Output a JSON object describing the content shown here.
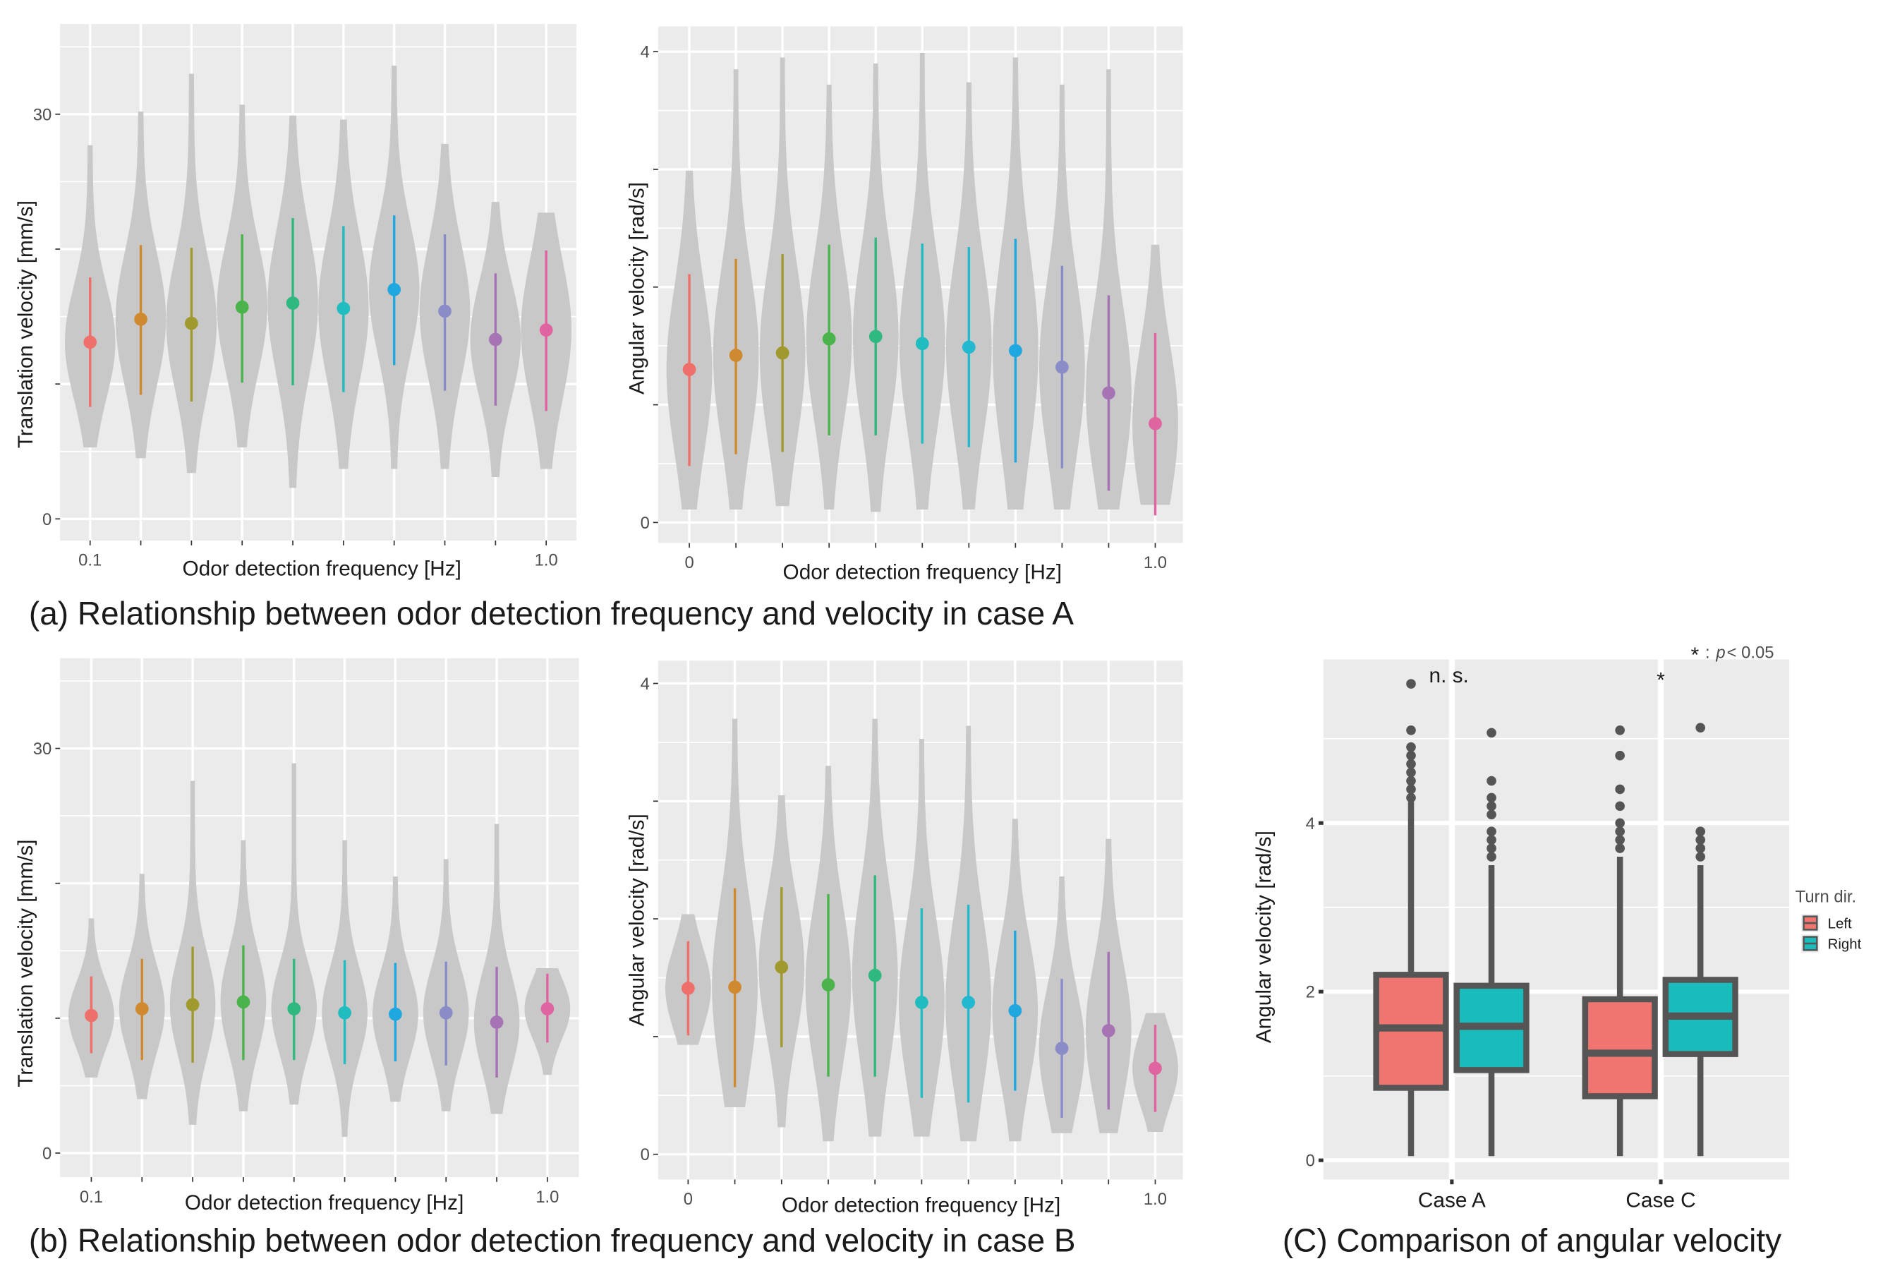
{
  "captions": {
    "a": "(a) Relationship between odor detection frequency and velocity in case A",
    "b": "(b) Relationship between odor detection frequency and velocity in case B",
    "c": "(C) Comparison of angular velocity"
  },
  "colors": {
    "panel": "#ebebeb",
    "grid": "#ffffff",
    "violin": "#c8c8c8",
    "box_line": "#555555",
    "left": "#f07470",
    "right": "#1abbbb",
    "series10": [
      "#ef6f6a",
      "#cf8a30",
      "#a09a2e",
      "#4bb34b",
      "#2fb97f",
      "#1fbcc0",
      "#1fa8e0",
      "#8a8cc8",
      "#a673b5",
      "#e0649f"
    ],
    "series11": [
      "#ef6f6a",
      "#cf8a30",
      "#a09a2e",
      "#4bb34b",
      "#2fb97f",
      "#1fbcc0",
      "#22b8d0",
      "#1fa8e0",
      "#8a8cc8",
      "#a673b5",
      "#e0649f"
    ]
  },
  "chart_data": [
    {
      "id": "a_translation",
      "type": "violin",
      "panel": "a",
      "xlabel": "Odor detection frequency [Hz]",
      "ylabel": "Translation velocity [mm/s]",
      "x_tick_labels": [
        "0.1",
        "",
        "",
        "",
        "",
        "",
        "",
        "",
        "",
        "1.0"
      ],
      "y_ticks": [
        0,
        10,
        20,
        30
      ],
      "y_tick_labels": [
        "0",
        "",
        "",
        "30"
      ],
      "ylim": [
        -1.5,
        36.5
      ],
      "mean": [
        13.1,
        14.8,
        14.5,
        15.7,
        16.0,
        15.6,
        17.0,
        15.4,
        13.3,
        14.0
      ],
      "sd_low": [
        8.3,
        9.2,
        8.7,
        10.1,
        9.9,
        9.4,
        11.4,
        9.5,
        8.4,
        8.0
      ],
      "sd_high": [
        17.9,
        20.3,
        20.1,
        21.1,
        22.3,
        21.7,
        22.5,
        21.1,
        18.2,
        19.9
      ],
      "min": [
        5.3,
        4.5,
        3.4,
        5.3,
        2.3,
        3.7,
        3.7,
        3.7,
        3.1,
        3.7
      ],
      "max": [
        27.7,
        30.2,
        33.0,
        30.7,
        29.9,
        29.6,
        33.6,
        27.8,
        23.5,
        22.7
      ]
    },
    {
      "id": "a_angular",
      "type": "violin",
      "panel": "a",
      "xlabel": "Odor detection frequency [Hz]",
      "ylabel": "Angular velocity [rad/s]",
      "x_tick_labels": [
        "0",
        "",
        "",
        "",
        "",
        "",
        "",
        "",
        "",
        "",
        "1.0"
      ],
      "y_ticks": [
        0,
        1,
        2,
        3,
        4
      ],
      "y_tick_labels": [
        "0",
        "",
        "",
        "",
        "4"
      ],
      "ylim": [
        -0.17,
        4.2
      ],
      "mean": [
        1.3,
        1.42,
        1.44,
        1.56,
        1.58,
        1.52,
        1.49,
        1.46,
        1.32,
        1.1,
        0.84
      ],
      "sd_low": [
        0.48,
        0.58,
        0.6,
        0.74,
        0.74,
        0.67,
        0.64,
        0.51,
        0.46,
        0.27,
        0.06
      ],
      "sd_high": [
        2.11,
        2.24,
        2.28,
        2.36,
        2.42,
        2.37,
        2.34,
        2.41,
        2.18,
        1.93,
        1.61
      ],
      "min": [
        0.11,
        0.11,
        0.14,
        0.11,
        0.09,
        0.11,
        0.11,
        0.11,
        0.11,
        0.11,
        0.15
      ],
      "max": [
        2.99,
        3.85,
        3.95,
        3.72,
        3.9,
        3.99,
        3.74,
        3.95,
        3.72,
        3.85,
        2.36
      ]
    },
    {
      "id": "b_translation",
      "type": "violin",
      "panel": "b",
      "xlabel": "Odor detection frequency [Hz]",
      "ylabel": "Translation velocity [mm/s]",
      "x_tick_labels": [
        "0.1",
        "",
        "",
        "",
        "",
        "",
        "",
        "",
        "",
        "1.0"
      ],
      "y_ticks": [
        0,
        10,
        20,
        30
      ],
      "y_tick_labels": [
        "0",
        "",
        "",
        "30"
      ],
      "ylim": [
        -1.8,
        36.6
      ],
      "mean": [
        10.2,
        10.7,
        11.0,
        11.2,
        10.7,
        10.4,
        10.3,
        10.4,
        9.7,
        10.7
      ],
      "sd_low": [
        7.4,
        6.9,
        6.7,
        6.9,
        6.9,
        6.6,
        6.8,
        6.5,
        5.6,
        8.2
      ],
      "sd_high": [
        13.1,
        14.4,
        15.3,
        15.4,
        14.4,
        14.3,
        14.1,
        14.2,
        13.8,
        13.3
      ],
      "min": [
        5.6,
        4.0,
        2.1,
        3.1,
        3.6,
        1.2,
        3.8,
        3.1,
        2.9,
        5.8
      ],
      "max": [
        17.4,
        20.7,
        27.6,
        23.2,
        28.9,
        23.2,
        20.5,
        21.8,
        24.4,
        13.7
      ]
    },
    {
      "id": "b_angular",
      "type": "violin",
      "panel": "b",
      "xlabel": "Odor detection frequency [Hz]",
      "ylabel": "Angular velocity [rad/s]",
      "x_tick_labels": [
        "0",
        "",
        "",
        "",
        "",
        "",
        "",
        "",
        "",
        "",
        "1.0"
      ],
      "y_ticks": [
        0,
        1,
        2,
        3,
        4
      ],
      "y_tick_labels": [
        "0",
        "",
        "",
        "",
        "4"
      ],
      "ylim": [
        -0.2,
        4.2
      ],
      "mean": [
        1.41,
        1.42,
        1.59,
        1.44,
        1.52,
        1.29,
        1.29,
        1.22,
        0.9,
        1.05,
        0.73
      ],
      "sd_low": [
        1.01,
        0.57,
        0.91,
        0.66,
        0.66,
        0.48,
        0.44,
        0.54,
        0.31,
        0.38,
        0.36
      ],
      "sd_high": [
        1.81,
        2.26,
        2.27,
        2.21,
        2.37,
        2.09,
        2.12,
        1.9,
        1.49,
        1.72,
        1.1
      ],
      "min": [
        0.93,
        0.4,
        0.23,
        0.11,
        0.15,
        0.15,
        0.11,
        0.11,
        0.18,
        0.18,
        0.19
      ],
      "max": [
        2.04,
        3.7,
        3.05,
        3.3,
        3.7,
        3.53,
        3.64,
        2.85,
        2.36,
        2.68,
        1.2
      ]
    },
    {
      "id": "c_comparison",
      "type": "box",
      "panel": "c",
      "xlabel": "",
      "ylabel": "Angular velocity [rad/s]",
      "categories": [
        "Case A",
        "Case C"
      ],
      "y_ticks": [
        0,
        2,
        4
      ],
      "y_tick_labels": [
        "0",
        "2",
        "4"
      ],
      "ylim": [
        -0.23,
        5.95
      ],
      "legend": {
        "title": "Turn dir.",
        "entries": [
          "Left",
          "Right"
        ],
        "position": "right"
      },
      "annotations": {
        "case_a": "n. s.",
        "case_c": "*",
        "note_star": "*",
        "note_p": "p",
        "note_rest": " < 0.05",
        "note_colon": ":"
      },
      "series": [
        {
          "name": "Left",
          "boxes": [
            {
              "q1": 0.86,
              "median": 1.57,
              "q3": 2.2,
              "whisker_low": 0.05,
              "whisker_high": 4.25,
              "outliers": [
                4.3,
                4.4,
                4.5,
                4.6,
                4.7,
                4.8,
                4.9,
                5.1,
                5.65
              ]
            },
            {
              "q1": 0.76,
              "median": 1.27,
              "q3": 1.91,
              "whisker_low": 0.05,
              "whisker_high": 3.6,
              "outliers": [
                3.7,
                3.8,
                3.9,
                4.0,
                4.2,
                4.4,
                4.8,
                5.1
              ]
            }
          ]
        },
        {
          "name": "Right",
          "boxes": [
            {
              "q1": 1.07,
              "median": 1.59,
              "q3": 2.07,
              "whisker_low": 0.05,
              "whisker_high": 3.5,
              "outliers": [
                3.6,
                3.7,
                3.8,
                3.9,
                4.1,
                4.2,
                4.3,
                4.5,
                5.07
              ]
            },
            {
              "q1": 1.26,
              "median": 1.71,
              "q3": 2.14,
              "whisker_low": 0.05,
              "whisker_high": 3.5,
              "outliers": [
                3.6,
                3.7,
                3.8,
                3.9,
                5.13
              ]
            }
          ]
        }
      ]
    }
  ]
}
